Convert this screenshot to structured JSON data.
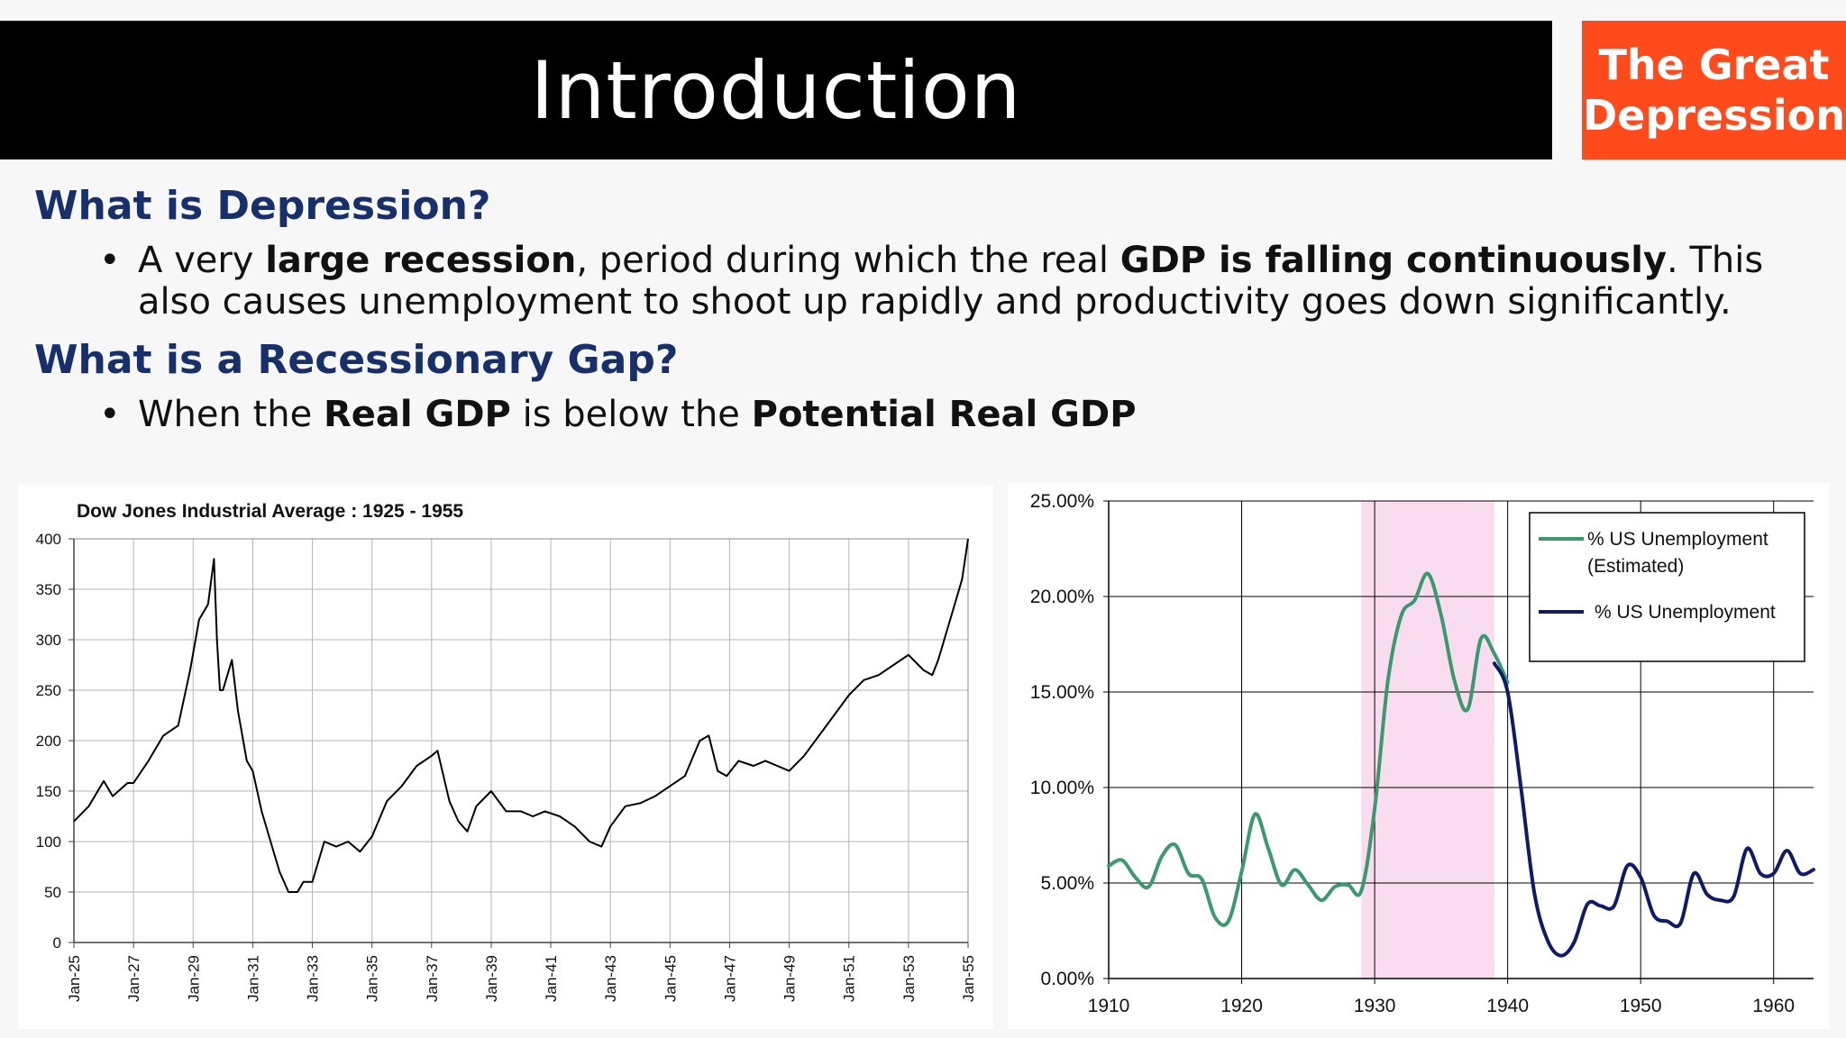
{
  "header": {
    "title": "Introduction",
    "badge": "The Great\nDepression"
  },
  "sections": [
    {
      "heading": "What is Depression?",
      "bullet": {
        "t1": "A very ",
        "b1": "large recession",
        "t2": ", period during which the real ",
        "b2": "GDP is falling continuously",
        "t3": ". This also causes unemployment to shoot up rapidly and productivity goes down significantly."
      }
    },
    {
      "heading": "What is a Recessionary Gap?",
      "bullet": {
        "t1": "When the ",
        "b1": "Real GDP",
        "t2": " is below the ",
        "b2": "Potential Real GDP",
        "t3": ""
      }
    }
  ],
  "bullet_glyph": "•",
  "chart_data": [
    {
      "type": "line",
      "title": "Dow Jones Industrial Average : 1925 - 1955",
      "xlabel": "",
      "ylabel": "",
      "ylim": [
        0,
        400
      ],
      "yticks": [
        "0",
        "50",
        "100",
        "150",
        "200",
        "250",
        "300",
        "350",
        "400"
      ],
      "xticks": [
        "Jan-25",
        "Jan-27",
        "Jan-29",
        "Jan-31",
        "Jan-33",
        "Jan-35",
        "Jan-37",
        "Jan-39",
        "Jan-41",
        "Jan-43",
        "Jan-45",
        "Jan-47",
        "Jan-49",
        "Jan-51",
        "Jan-53",
        "Jan-55"
      ],
      "x_range": [
        1925,
        1955
      ],
      "grid": true,
      "line_color": "#000000",
      "series": [
        {
          "x": [
            1925.0,
            1925.5,
            1926.0,
            1926.3,
            1926.8,
            1927.0,
            1927.5,
            1928.0,
            1928.5,
            1928.9,
            1929.2,
            1929.5,
            1929.7,
            1929.8,
            1929.9,
            1930.0,
            1930.3,
            1930.5,
            1930.8,
            1931.0,
            1931.3,
            1931.6,
            1931.9,
            1932.2,
            1932.5,
            1932.7,
            1933.0,
            1933.4,
            1933.8,
            1934.2,
            1934.6,
            1935.0,
            1935.5,
            1936.0,
            1936.5,
            1937.0,
            1937.2,
            1937.6,
            1937.9,
            1938.2,
            1938.5,
            1939.0,
            1939.5,
            1940.0,
            1940.4,
            1940.8,
            1941.3,
            1941.8,
            1942.3,
            1942.7,
            1943.0,
            1943.5,
            1944.0,
            1944.5,
            1945.0,
            1945.5,
            1946.0,
            1946.3,
            1946.6,
            1946.9,
            1947.3,
            1947.8,
            1948.2,
            1948.6,
            1949.0,
            1949.5,
            1950.0,
            1950.5,
            1951.0,
            1951.5,
            1952.0,
            1952.5,
            1953.0,
            1953.5,
            1953.8,
            1954.0,
            1954.4,
            1954.8,
            1955.0
          ],
          "y": [
            120,
            135,
            160,
            145,
            158,
            158,
            180,
            205,
            215,
            270,
            320,
            335,
            380,
            300,
            250,
            250,
            280,
            230,
            180,
            170,
            130,
            100,
            70,
            50,
            50,
            60,
            60,
            100,
            95,
            100,
            90,
            105,
            140,
            155,
            175,
            185,
            190,
            140,
            120,
            110,
            135,
            150,
            130,
            130,
            125,
            130,
            125,
            115,
            100,
            95,
            115,
            135,
            138,
            145,
            155,
            165,
            200,
            205,
            170,
            165,
            180,
            175,
            180,
            175,
            170,
            185,
            205,
            225,
            245,
            260,
            265,
            275,
            285,
            270,
            265,
            280,
            320,
            360,
            400
          ]
        }
      ]
    },
    {
      "type": "line",
      "title": "",
      "xlabel": "",
      "ylabel": "",
      "ylim": [
        0,
        25
      ],
      "yticks": [
        "0.00%",
        "5.00%",
        "10.00%",
        "15.00%",
        "20.00%",
        "25.00%"
      ],
      "xticks": [
        "1910",
        "1920",
        "1930",
        "1940",
        "1950",
        "1960"
      ],
      "xlim": [
        1910,
        1963
      ],
      "grid": true,
      "shaded_region": [
        1929,
        1939
      ],
      "shaded_color": "#fadcf0",
      "legend": "top-right",
      "series": [
        {
          "name": "% US Unemployment (Estimated)",
          "color": "#3a9a6e",
          "x": [
            1910,
            1911,
            1912,
            1913,
            1914,
            1915,
            1916,
            1917,
            1918,
            1919,
            1920,
            1921,
            1922,
            1923,
            1924,
            1925,
            1926,
            1927,
            1928,
            1929,
            1930,
            1931,
            1932,
            1933,
            1934,
            1935,
            1936,
            1937,
            1938,
            1939,
            1940
          ],
          "y": [
            5.9,
            6.2,
            5.3,
            4.8,
            6.4,
            7.0,
            5.5,
            5.2,
            3.2,
            3.0,
            5.6,
            8.6,
            6.8,
            4.9,
            5.7,
            4.9,
            4.1,
            4.8,
            4.9,
            4.6,
            8.9,
            15.6,
            19.0,
            19.8,
            21.2,
            19.0,
            15.6,
            14.1,
            17.8,
            17.0,
            15.5
          ]
        },
        {
          "name": "% US Unemployment",
          "color": "#0f1a6a",
          "x": [
            1939,
            1940,
            1941,
            1942,
            1943,
            1944,
            1945,
            1946,
            1947,
            1948,
            1949,
            1950,
            1951,
            1952,
            1953,
            1954,
            1955,
            1956,
            1957,
            1958,
            1959,
            1960,
            1961,
            1962,
            1963
          ],
          "y": [
            16.5,
            15.0,
            10.0,
            4.5,
            2.0,
            1.2,
            1.9,
            3.9,
            3.8,
            3.8,
            5.9,
            5.3,
            3.3,
            3.0,
            2.9,
            5.5,
            4.4,
            4.1,
            4.3,
            6.8,
            5.5,
            5.5,
            6.7,
            5.5,
            5.7
          ]
        }
      ]
    }
  ]
}
